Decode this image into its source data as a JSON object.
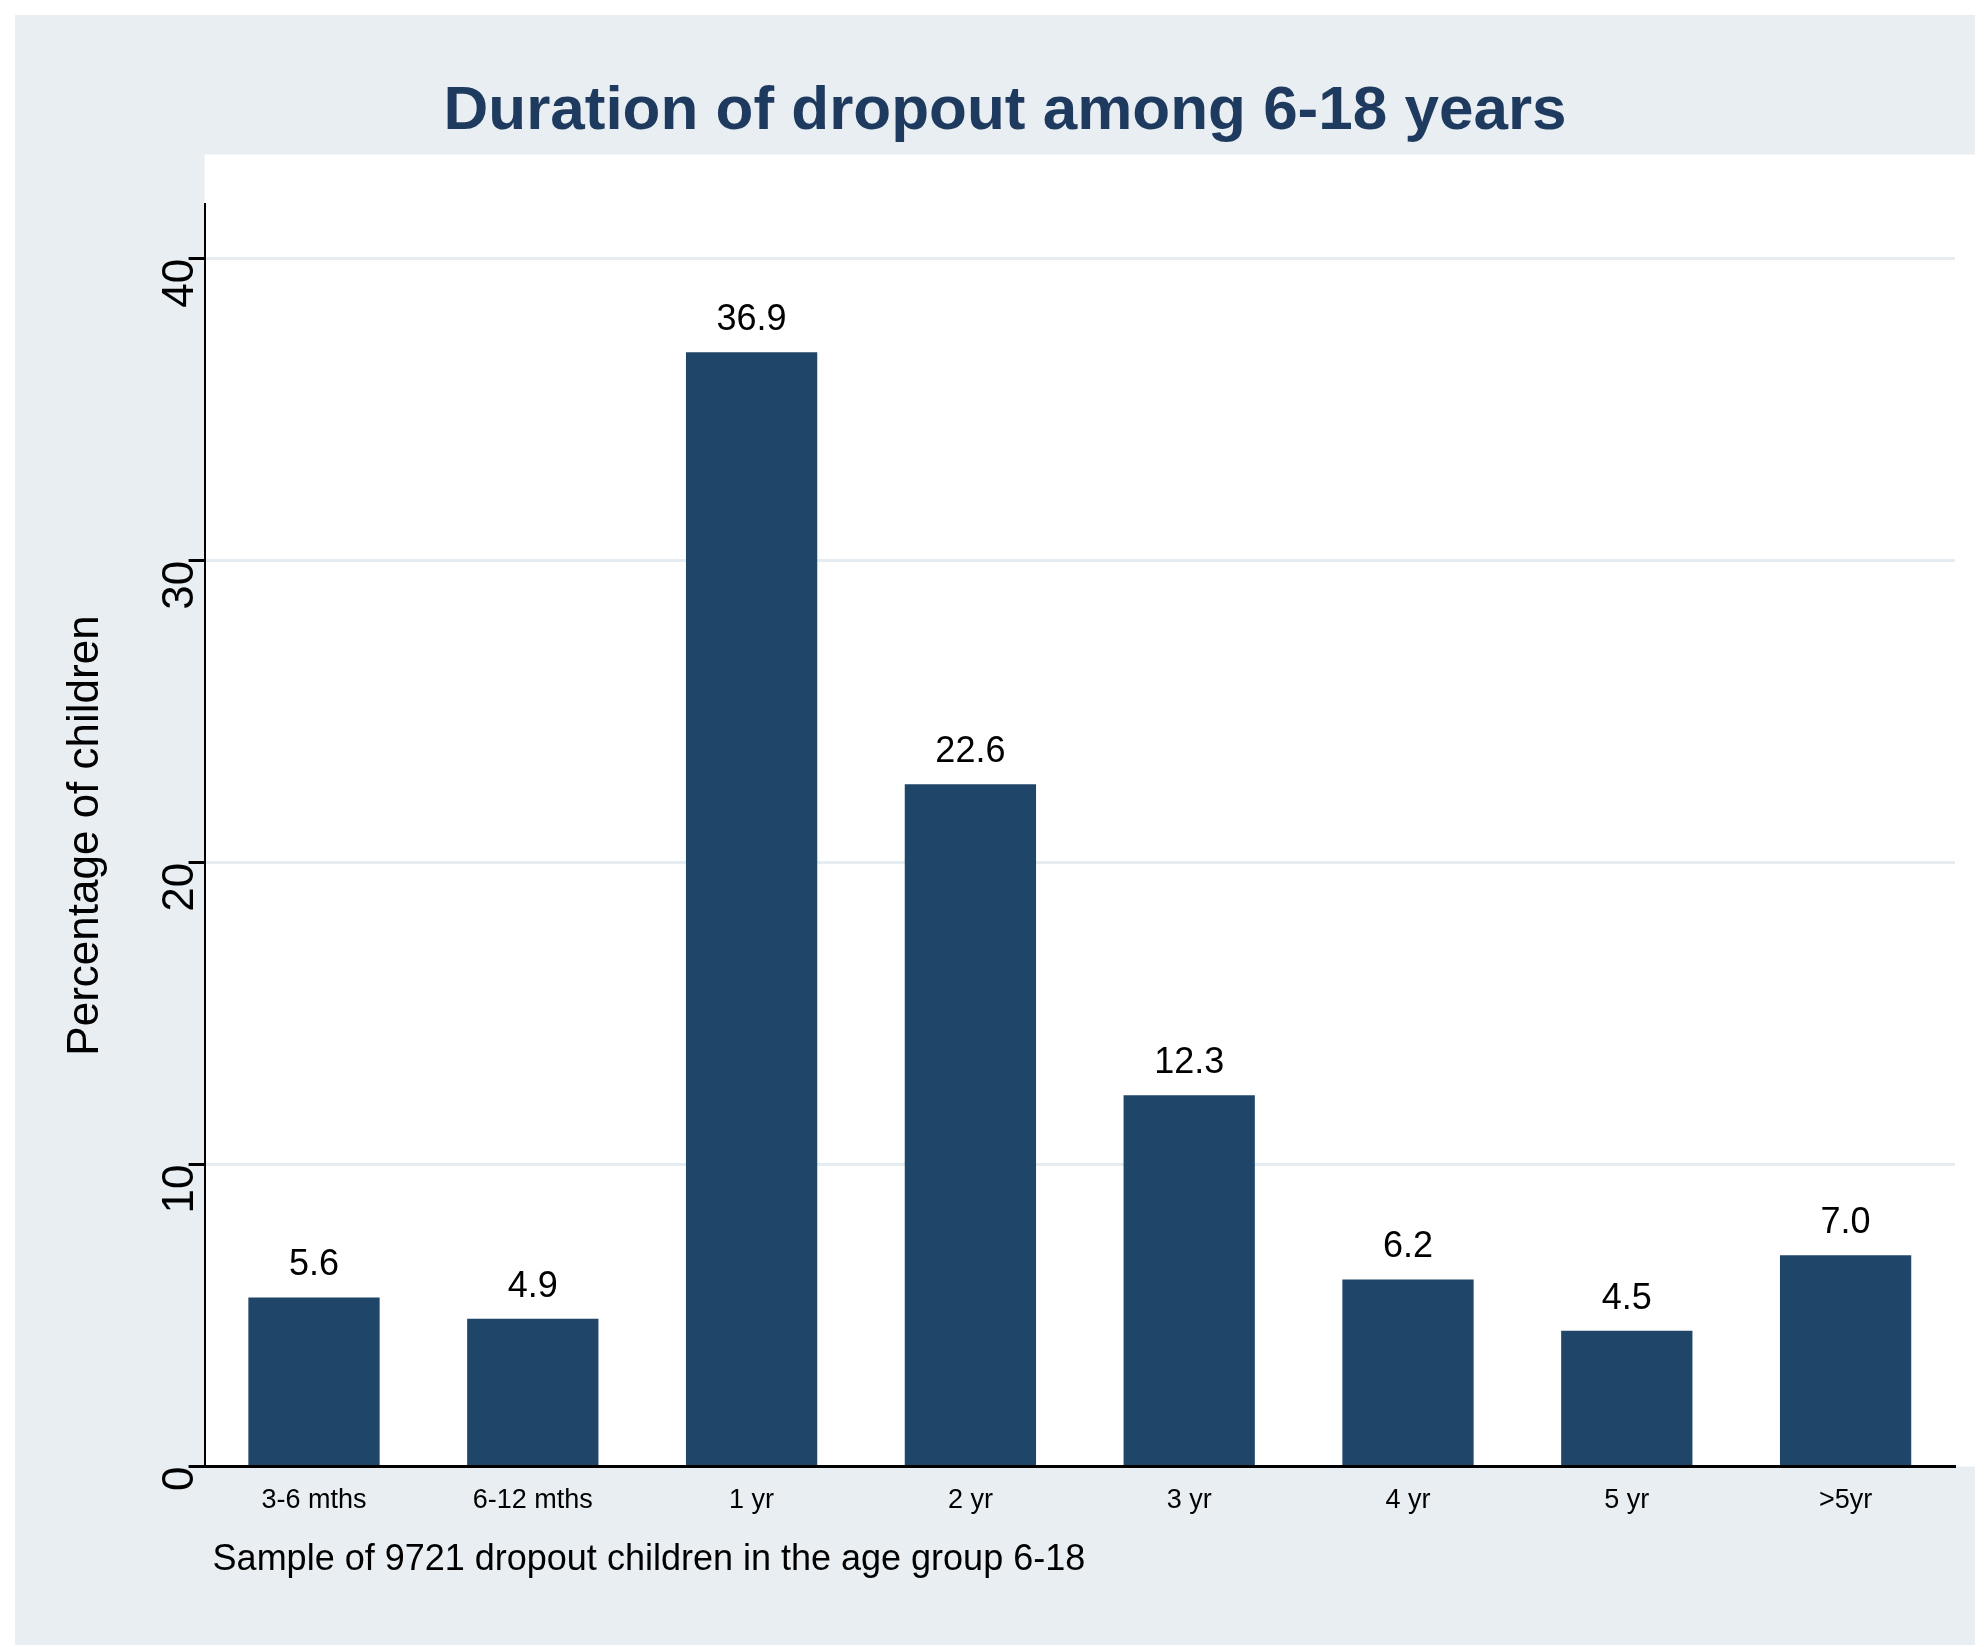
{
  "chart_data": {
    "type": "bar",
    "title": "Duration of dropout among 6-18 years",
    "ylabel": "Percentage of children",
    "categories": [
      "3-6 mths",
      "6-12 mths",
      "1 yr",
      "2 yr",
      "3 yr",
      "4 yr",
      "5 yr",
      ">5yr"
    ],
    "values": [
      5.6,
      4.9,
      36.9,
      22.6,
      12.3,
      6.2,
      4.5,
      7.0
    ],
    "value_labels": [
      "5.6",
      "4.9",
      "36.9",
      "22.6",
      "12.3",
      "6.2",
      "4.5",
      "7.0"
    ],
    "color": "#1f4568",
    "ylim": [
      0,
      41.8
    ],
    "yticks": [
      0,
      10,
      20,
      30,
      40
    ],
    "grid": "y",
    "legend": false,
    "annotations": [
      "Sample of 9721 dropout children in the age group 6-18"
    ]
  }
}
